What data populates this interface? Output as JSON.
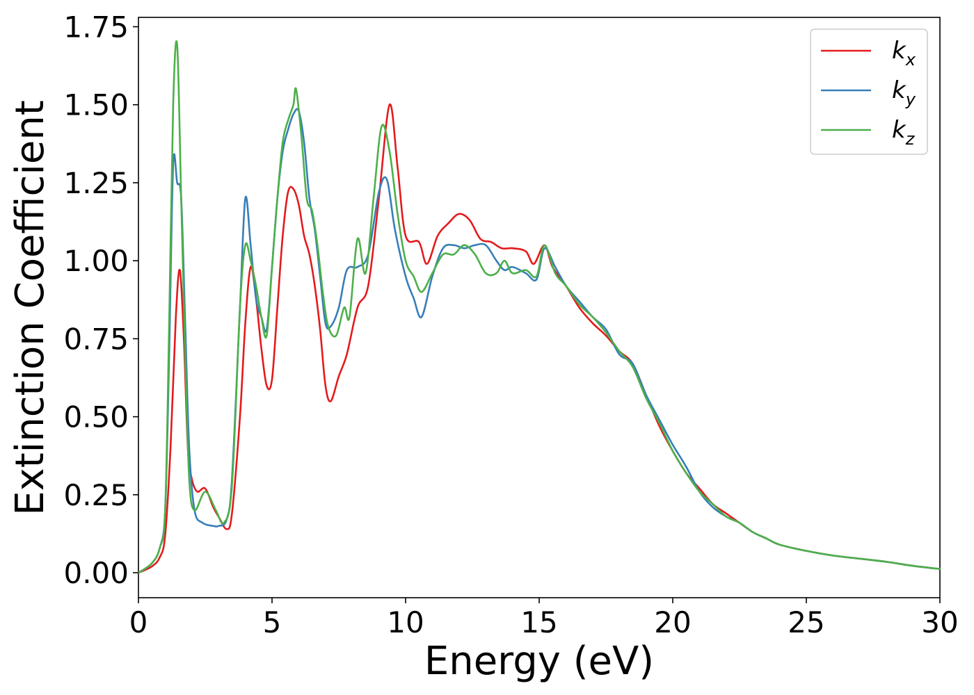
{
  "chart_data": {
    "type": "line",
    "title": "",
    "xlabel": "Energy (eV)",
    "ylabel": "Extinction Coefficient",
    "xlim": [
      0,
      30
    ],
    "ylim": [
      -0.08,
      1.78
    ],
    "xticks": [
      0,
      5,
      10,
      15,
      20,
      25,
      30
    ],
    "yticks": [
      0.0,
      0.25,
      0.5,
      0.75,
      1.0,
      1.25,
      1.5,
      1.75
    ],
    "ytick_labels": [
      "0.00",
      "0.25",
      "0.50",
      "0.75",
      "1.00",
      "1.25",
      "1.50",
      "1.75"
    ],
    "grid": false,
    "legend_position": "top-right",
    "series": [
      {
        "name": "k_x",
        "legend_base": "k",
        "legend_sub": "x",
        "color": "#e41a1c",
        "x": [
          0,
          0.5,
          0.8,
          1.0,
          1.2,
          1.4,
          1.55,
          1.7,
          1.85,
          2.0,
          2.2,
          2.5,
          2.8,
          3.0,
          3.3,
          3.5,
          3.8,
          4.0,
          4.2,
          4.4,
          4.6,
          4.8,
          5.0,
          5.2,
          5.4,
          5.6,
          5.8,
          6.0,
          6.2,
          6.4,
          6.6,
          6.8,
          7.0,
          7.2,
          7.5,
          7.8,
          8.2,
          8.6,
          9.0,
          9.4,
          9.7,
          10.0,
          10.5,
          10.8,
          11.2,
          11.6,
          12.0,
          12.4,
          12.8,
          13.2,
          13.6,
          14.0,
          14.5,
          14.8,
          15.2,
          15.5,
          16.0,
          16.5,
          17.0,
          17.5,
          18.0,
          18.5,
          19.0,
          19.5,
          20.0,
          20.5,
          21.0,
          21.5,
          22.0,
          22.5,
          23.0,
          23.5,
          24.0,
          25.0,
          26.0,
          27.0,
          28.0,
          29.0,
          30.0
        ],
        "y": [
          0.0,
          0.02,
          0.05,
          0.12,
          0.4,
          0.82,
          0.97,
          0.75,
          0.4,
          0.3,
          0.26,
          0.27,
          0.21,
          0.18,
          0.14,
          0.19,
          0.5,
          0.8,
          0.98,
          0.88,
          0.72,
          0.6,
          0.62,
          0.85,
          1.08,
          1.22,
          1.23,
          1.18,
          1.08,
          1.02,
          0.92,
          0.78,
          0.6,
          0.55,
          0.63,
          0.7,
          0.85,
          0.92,
          1.2,
          1.5,
          1.3,
          1.08,
          1.06,
          0.99,
          1.08,
          1.12,
          1.15,
          1.13,
          1.07,
          1.06,
          1.04,
          1.04,
          1.03,
          0.99,
          1.05,
          0.98,
          0.92,
          0.85,
          0.8,
          0.76,
          0.71,
          0.67,
          0.57,
          0.47,
          0.39,
          0.32,
          0.27,
          0.22,
          0.19,
          0.16,
          0.13,
          0.11,
          0.09,
          0.07,
          0.055,
          0.045,
          0.035,
          0.022,
          0.012
        ]
      },
      {
        "name": "k_y",
        "legend_base": "k",
        "legend_sub": "y",
        "color": "#377eb8",
        "x": [
          0,
          0.5,
          0.8,
          1.0,
          1.15,
          1.3,
          1.45,
          1.6,
          1.75,
          1.9,
          2.1,
          2.4,
          2.8,
          3.0,
          3.3,
          3.5,
          3.8,
          4.0,
          4.2,
          4.4,
          4.6,
          4.8,
          5.0,
          5.2,
          5.4,
          5.6,
          5.8,
          6.0,
          6.2,
          6.4,
          6.6,
          6.8,
          7.0,
          7.2,
          7.5,
          7.8,
          8.2,
          8.6,
          9.0,
          9.3,
          9.6,
          10.0,
          10.3,
          10.6,
          11.0,
          11.4,
          11.8,
          12.2,
          12.6,
          13.0,
          13.4,
          13.7,
          14.0,
          14.5,
          14.9,
          15.2,
          15.6,
          16.0,
          16.5,
          17.0,
          17.5,
          18.0,
          18.5,
          19.0,
          19.5,
          20.0,
          20.5,
          21.0,
          21.5,
          22.0,
          22.5,
          23.0,
          23.5,
          24.0,
          25.0,
          26.0,
          27.0,
          28.0,
          29.0,
          30.0
        ],
        "y": [
          0.0,
          0.03,
          0.08,
          0.2,
          0.7,
          1.31,
          1.25,
          1.2,
          0.8,
          0.4,
          0.2,
          0.16,
          0.15,
          0.15,
          0.17,
          0.3,
          0.85,
          1.2,
          1.05,
          0.88,
          0.82,
          0.78,
          0.98,
          1.2,
          1.35,
          1.42,
          1.47,
          1.48,
          1.38,
          1.2,
          1.1,
          0.95,
          0.8,
          0.79,
          0.85,
          0.97,
          0.98,
          1.02,
          1.22,
          1.26,
          1.1,
          0.95,
          0.88,
          0.82,
          0.95,
          1.04,
          1.05,
          1.04,
          1.05,
          1.05,
          1.0,
          0.97,
          0.98,
          0.96,
          0.94,
          1.04,
          0.98,
          0.92,
          0.87,
          0.82,
          0.78,
          0.7,
          0.67,
          0.57,
          0.49,
          0.41,
          0.34,
          0.26,
          0.21,
          0.18,
          0.16,
          0.13,
          0.11,
          0.09,
          0.07,
          0.055,
          0.045,
          0.035,
          0.022,
          0.012
        ]
      },
      {
        "name": "k_z",
        "legend_base": "k",
        "legend_sub": "z",
        "color": "#4daf4a",
        "x": [
          0,
          0.5,
          0.8,
          1.0,
          1.15,
          1.3,
          1.45,
          1.6,
          1.75,
          1.9,
          2.1,
          2.5,
          2.9,
          3.2,
          3.5,
          3.8,
          4.0,
          4.2,
          4.4,
          4.6,
          4.8,
          5.0,
          5.2,
          5.4,
          5.6,
          5.8,
          5.9,
          6.1,
          6.3,
          6.5,
          6.7,
          6.9,
          7.1,
          7.4,
          7.7,
          7.9,
          8.2,
          8.5,
          8.8,
          9.1,
          9.4,
          9.7,
          10.0,
          10.3,
          10.6,
          11.0,
          11.4,
          11.8,
          12.2,
          12.6,
          13.0,
          13.4,
          13.7,
          14.0,
          14.5,
          14.9,
          15.2,
          15.6,
          16.0,
          16.5,
          17.0,
          17.5,
          18.0,
          18.5,
          19.0,
          19.5,
          20.0,
          20.5,
          21.0,
          21.5,
          22.0,
          22.5,
          23.0,
          23.5,
          24.0,
          25.0,
          26.0,
          27.0,
          28.0,
          29.0,
          30.0
        ],
        "y": [
          0.0,
          0.03,
          0.08,
          0.2,
          0.8,
          1.5,
          1.69,
          1.2,
          0.7,
          0.3,
          0.2,
          0.26,
          0.2,
          0.16,
          0.28,
          0.85,
          1.05,
          1.0,
          0.92,
          0.82,
          0.76,
          0.98,
          1.2,
          1.38,
          1.45,
          1.5,
          1.55,
          1.4,
          1.2,
          1.16,
          1.05,
          0.9,
          0.79,
          0.76,
          0.85,
          0.82,
          1.07,
          0.96,
          1.2,
          1.43,
          1.35,
          1.15,
          1.0,
          0.95,
          0.9,
          0.96,
          1.02,
          1.02,
          1.05,
          1.02,
          0.96,
          0.96,
          1.0,
          0.96,
          0.97,
          0.95,
          1.05,
          0.96,
          0.92,
          0.86,
          0.82,
          0.77,
          0.71,
          0.66,
          0.56,
          0.48,
          0.39,
          0.32,
          0.26,
          0.22,
          0.18,
          0.16,
          0.13,
          0.11,
          0.09,
          0.07,
          0.055,
          0.045,
          0.035,
          0.022,
          0.012
        ]
      }
    ]
  }
}
